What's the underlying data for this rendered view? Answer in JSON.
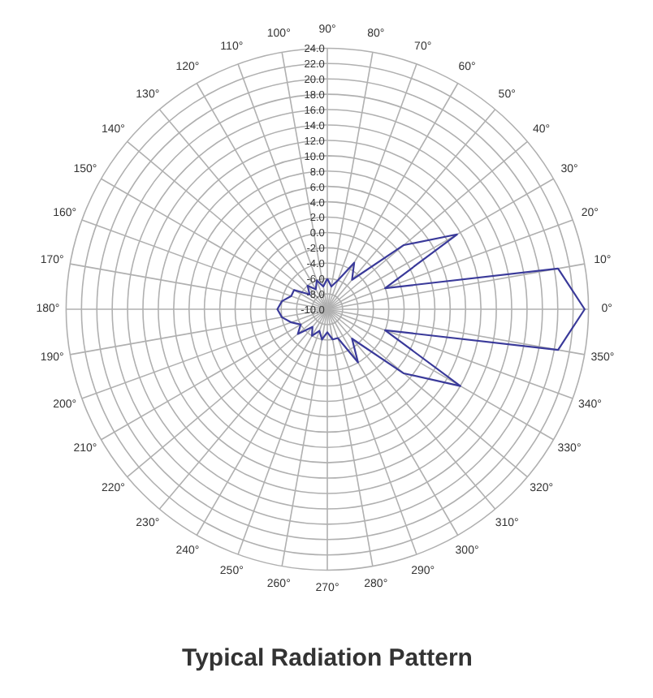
{
  "chart_data": {
    "type": "radar",
    "title": "Typical Radiation Pattern",
    "categories": [
      "90°",
      "80°",
      "70°",
      "60°",
      "50°",
      "40°",
      "30°",
      "20°",
      "10°",
      "0°",
      "350°",
      "340°",
      "330°",
      "320°",
      "310°",
      "300°",
      "290°",
      "280°",
      "270°",
      "260°",
      "250°",
      "240°",
      "230°",
      "220°",
      "210°",
      "200°",
      "190°",
      "180°",
      "170°",
      "160°",
      "150°",
      "140°",
      "130°",
      "120°",
      "110°",
      "100°"
    ],
    "series": [
      {
        "color": "#3a3a9a",
        "values": [
          -6,
          -7,
          -6,
          -3,
          -5,
          3,
          9.5,
          -2,
          20.5,
          23.5,
          20.5,
          -2,
          10,
          3,
          -5,
          -2,
          -6,
          -6,
          -7,
          -6,
          -7,
          -6,
          -7,
          -5,
          -6,
          -5,
          -4,
          -3.5,
          -4,
          -5,
          -5,
          -7,
          -6,
          -7,
          -6,
          -7
        ]
      }
    ],
    "ylim": [
      -10,
      24
    ],
    "yticks": [
      {
        "value": -10,
        "label": "-10.0"
      },
      {
        "value": -8,
        "label": "-8.0"
      },
      {
        "value": -6,
        "label": "-6.0"
      },
      {
        "value": -4,
        "label": "-4.0"
      },
      {
        "value": -2,
        "label": "-2.0"
      },
      {
        "value": 0,
        "label": "0.0"
      },
      {
        "value": 2,
        "label": "2.0"
      },
      {
        "value": 4,
        "label": "4.0"
      },
      {
        "value": 6,
        "label": "6.0"
      },
      {
        "value": 8,
        "label": "8.0"
      },
      {
        "value": 10,
        "label": "10.0"
      },
      {
        "value": 12,
        "label": "12.0"
      },
      {
        "value": 14,
        "label": "14.0"
      },
      {
        "value": 16,
        "label": "16.0"
      },
      {
        "value": 18,
        "label": "18.0"
      },
      {
        "value": 20,
        "label": "20.0"
      },
      {
        "value": 22,
        "label": "22.0"
      },
      {
        "value": 24,
        "label": "24.0"
      }
    ],
    "grid": true
  }
}
